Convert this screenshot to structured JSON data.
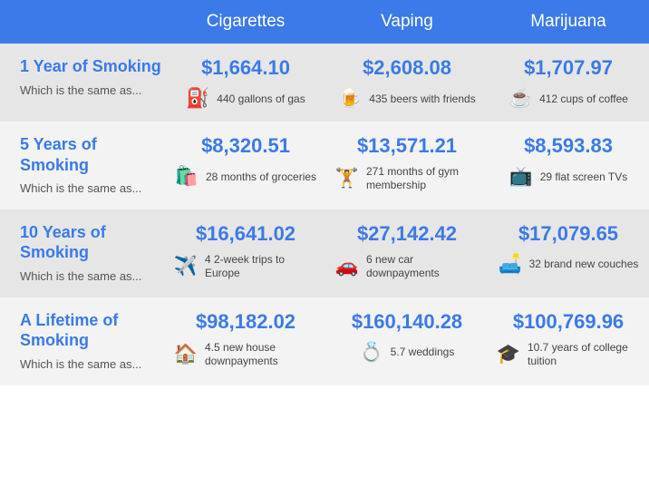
{
  "columns": [
    "Cigarettes",
    "Vaping",
    "Marijuana"
  ],
  "subtitle": "Which is the same as...",
  "rows": [
    {
      "title": "1 Year of Smoking",
      "cells": [
        {
          "price": "$1,664.10",
          "icon": "⛽",
          "text": "440 gallons of gas"
        },
        {
          "price": "$2,608.08",
          "icon": "🍺",
          "text": "435 beers with friends"
        },
        {
          "price": "$1,707.97",
          "icon": "☕",
          "text": "412 cups of coffee"
        }
      ]
    },
    {
      "title": "5 Years of Smoking",
      "cells": [
        {
          "price": "$8,320.51",
          "icon": "🛍️",
          "text": "28 months of groceries"
        },
        {
          "price": "$13,571.21",
          "icon": "🏋️",
          "text": "271 months of gym membership"
        },
        {
          "price": "$8,593.83",
          "icon": "📺",
          "text": "29 flat screen TVs"
        }
      ]
    },
    {
      "title": "10 Years of Smoking",
      "cells": [
        {
          "price": "$16,641.02",
          "icon": "✈️",
          "text": "4 2-week trips to Europe"
        },
        {
          "price": "$27,142.42",
          "icon": "🚗",
          "text": "6 new car downpayments"
        },
        {
          "price": "$17,079.65",
          "icon": "🛋️",
          "text": "32 brand new couches"
        }
      ]
    },
    {
      "title": "A Lifetime of Smoking",
      "cells": [
        {
          "price": "$98,182.02",
          "icon": "🏠",
          "text": "4.5 new house downpayments"
        },
        {
          "price": "$160,140.28",
          "icon": "💍",
          "text": "5.7 weddings"
        },
        {
          "price": "$100,769.96",
          "icon": "🎓",
          "text": "10.7 years of college tuition"
        }
      ]
    }
  ]
}
